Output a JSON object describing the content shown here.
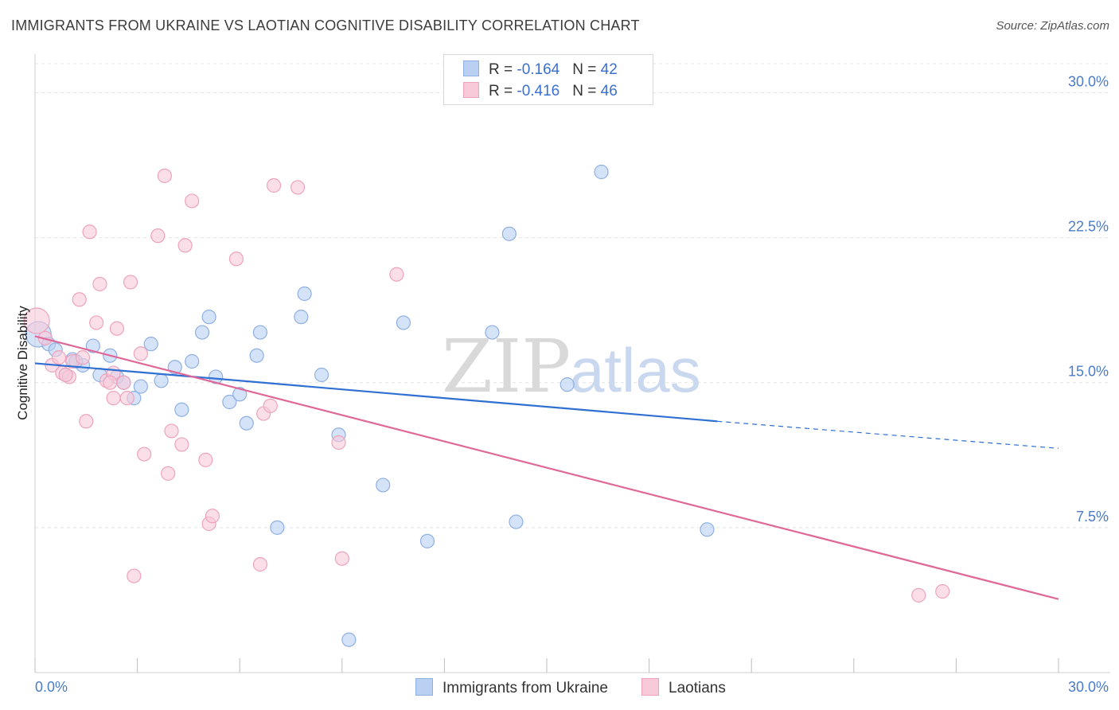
{
  "title": "IMMIGRANTS FROM UKRAINE VS LAOTIAN COGNITIVE DISABILITY CORRELATION CHART",
  "source": "Source: ZipAtlas.com",
  "watermark": {
    "zip": "ZIP",
    "atlas": "atlas"
  },
  "legend": {
    "series": [
      {
        "r_label": "R = ",
        "r_value": "-0.164",
        "n_label": "N = ",
        "n_value": "42"
      },
      {
        "r_label": "R = ",
        "r_value": "-0.416",
        "n_label": "N = ",
        "n_value": "46"
      }
    ]
  },
  "colors": {
    "ukraine_fill": "#b9d0f3",
    "ukraine_stroke": "#8fb0e3",
    "ukraine_line": "#2f6fd1",
    "laotian_fill": "#f8c9d8",
    "laotian_stroke": "#eea3bd",
    "laotian_line": "#e06898",
    "grid": "#e3e3e3",
    "axis_text": "#4a7cc9"
  },
  "chart_data": {
    "type": "scatter",
    "xlabel": "",
    "ylabel": "Cognitive Disability",
    "xlim": [
      0,
      30
    ],
    "ylim": [
      0,
      31.5
    ],
    "x_tick_labels": [
      "0.0%",
      "30.0%"
    ],
    "y_ticks": [
      7.5,
      15.0,
      22.5,
      30.0
    ],
    "y_tick_labels": [
      "7.5%",
      "15.0%",
      "22.5%",
      "30.0%"
    ],
    "x_minor_ticks": [
      0,
      3,
      6,
      9,
      12,
      15,
      18,
      21,
      24,
      27,
      30
    ],
    "series": [
      {
        "name": "Immigrants from Ukraine",
        "color": "#b9d0f3",
        "trend": {
          "x0": 0,
          "y0": 16.0,
          "x1": 20.0,
          "y1": 13.0,
          "dash_x1": 30,
          "dash_y1": 11.6
        },
        "points": [
          {
            "x": 0.1,
            "y": 17.5,
            "big": true
          },
          {
            "x": 0.4,
            "y": 17.0
          },
          {
            "x": 0.6,
            "y": 16.7
          },
          {
            "x": 0.9,
            "y": 15.4
          },
          {
            "x": 1.1,
            "y": 16.2
          },
          {
            "x": 1.4,
            "y": 15.9
          },
          {
            "x": 1.7,
            "y": 16.9
          },
          {
            "x": 1.9,
            "y": 15.4
          },
          {
            "x": 2.2,
            "y": 16.4
          },
          {
            "x": 2.4,
            "y": 15.3
          },
          {
            "x": 2.6,
            "y": 15.0
          },
          {
            "x": 2.9,
            "y": 14.2
          },
          {
            "x": 3.1,
            "y": 14.8
          },
          {
            "x": 3.4,
            "y": 17.0
          },
          {
            "x": 3.7,
            "y": 15.1
          },
          {
            "x": 4.1,
            "y": 15.8
          },
          {
            "x": 4.3,
            "y": 13.6
          },
          {
            "x": 4.6,
            "y": 16.1
          },
          {
            "x": 4.9,
            "y": 17.6
          },
          {
            "x": 5.1,
            "y": 18.4
          },
          {
            "x": 5.3,
            "y": 15.3
          },
          {
            "x": 5.7,
            "y": 14.0
          },
          {
            "x": 6.0,
            "y": 14.4
          },
          {
            "x": 6.2,
            "y": 12.9
          },
          {
            "x": 6.5,
            "y": 16.4
          },
          {
            "x": 6.6,
            "y": 17.6
          },
          {
            "x": 7.1,
            "y": 7.5
          },
          {
            "x": 7.8,
            "y": 18.4
          },
          {
            "x": 7.9,
            "y": 19.6
          },
          {
            "x": 8.4,
            "y": 15.4
          },
          {
            "x": 8.9,
            "y": 12.3
          },
          {
            "x": 9.2,
            "y": 1.7
          },
          {
            "x": 10.2,
            "y": 9.7
          },
          {
            "x": 10.8,
            "y": 18.1
          },
          {
            "x": 11.5,
            "y": 6.8
          },
          {
            "x": 13.4,
            "y": 17.6
          },
          {
            "x": 13.9,
            "y": 22.7
          },
          {
            "x": 14.1,
            "y": 7.8
          },
          {
            "x": 15.6,
            "y": 14.9
          },
          {
            "x": 16.6,
            "y": 25.9
          },
          {
            "x": 19.7,
            "y": 7.4
          },
          {
            "x": 1.2,
            "y": 16.1
          }
        ]
      },
      {
        "name": "Laotians",
        "color": "#f8c9d8",
        "trend": {
          "x0": 0,
          "y0": 17.4,
          "x1": 30,
          "y1": 3.8
        },
        "points": [
          {
            "x": 0.05,
            "y": 18.2,
            "big": true
          },
          {
            "x": 0.3,
            "y": 17.3
          },
          {
            "x": 0.5,
            "y": 15.9
          },
          {
            "x": 0.7,
            "y": 16.3
          },
          {
            "x": 0.8,
            "y": 15.5
          },
          {
            "x": 1.0,
            "y": 15.3
          },
          {
            "x": 1.1,
            "y": 16.1
          },
          {
            "x": 1.3,
            "y": 19.3
          },
          {
            "x": 1.4,
            "y": 16.3
          },
          {
            "x": 1.5,
            "y": 13.0
          },
          {
            "x": 1.6,
            "y": 22.8
          },
          {
            "x": 1.8,
            "y": 18.1
          },
          {
            "x": 1.9,
            "y": 20.1
          },
          {
            "x": 2.1,
            "y": 15.1
          },
          {
            "x": 2.3,
            "y": 15.5
          },
          {
            "x": 2.3,
            "y": 14.2
          },
          {
            "x": 2.4,
            "y": 17.8
          },
          {
            "x": 2.6,
            "y": 15.0
          },
          {
            "x": 2.7,
            "y": 14.2
          },
          {
            "x": 2.8,
            "y": 20.2
          },
          {
            "x": 2.9,
            "y": 5.0
          },
          {
            "x": 3.1,
            "y": 16.5
          },
          {
            "x": 3.2,
            "y": 11.3
          },
          {
            "x": 3.6,
            "y": 22.6
          },
          {
            "x": 3.8,
            "y": 25.7
          },
          {
            "x": 3.9,
            "y": 10.3
          },
          {
            "x": 4.0,
            "y": 12.5
          },
          {
            "x": 4.3,
            "y": 11.8
          },
          {
            "x": 4.4,
            "y": 22.1
          },
          {
            "x": 4.6,
            "y": 24.4
          },
          {
            "x": 5.0,
            "y": 11.0
          },
          {
            "x": 5.1,
            "y": 7.7
          },
          {
            "x": 5.2,
            "y": 8.1
          },
          {
            "x": 5.9,
            "y": 21.4
          },
          {
            "x": 6.6,
            "y": 5.6
          },
          {
            "x": 6.7,
            "y": 13.4
          },
          {
            "x": 6.9,
            "y": 13.8
          },
          {
            "x": 7.0,
            "y": 25.2
          },
          {
            "x": 7.7,
            "y": 25.1
          },
          {
            "x": 9.0,
            "y": 5.9
          },
          {
            "x": 8.9,
            "y": 11.9
          },
          {
            "x": 10.6,
            "y": 20.6
          },
          {
            "x": 25.9,
            "y": 4.0
          },
          {
            "x": 26.6,
            "y": 4.2
          },
          {
            "x": 0.9,
            "y": 15.4
          },
          {
            "x": 2.2,
            "y": 15.0
          }
        ]
      }
    ]
  },
  "bottom_legend": [
    "Immigrants from Ukraine",
    "Laotians"
  ]
}
